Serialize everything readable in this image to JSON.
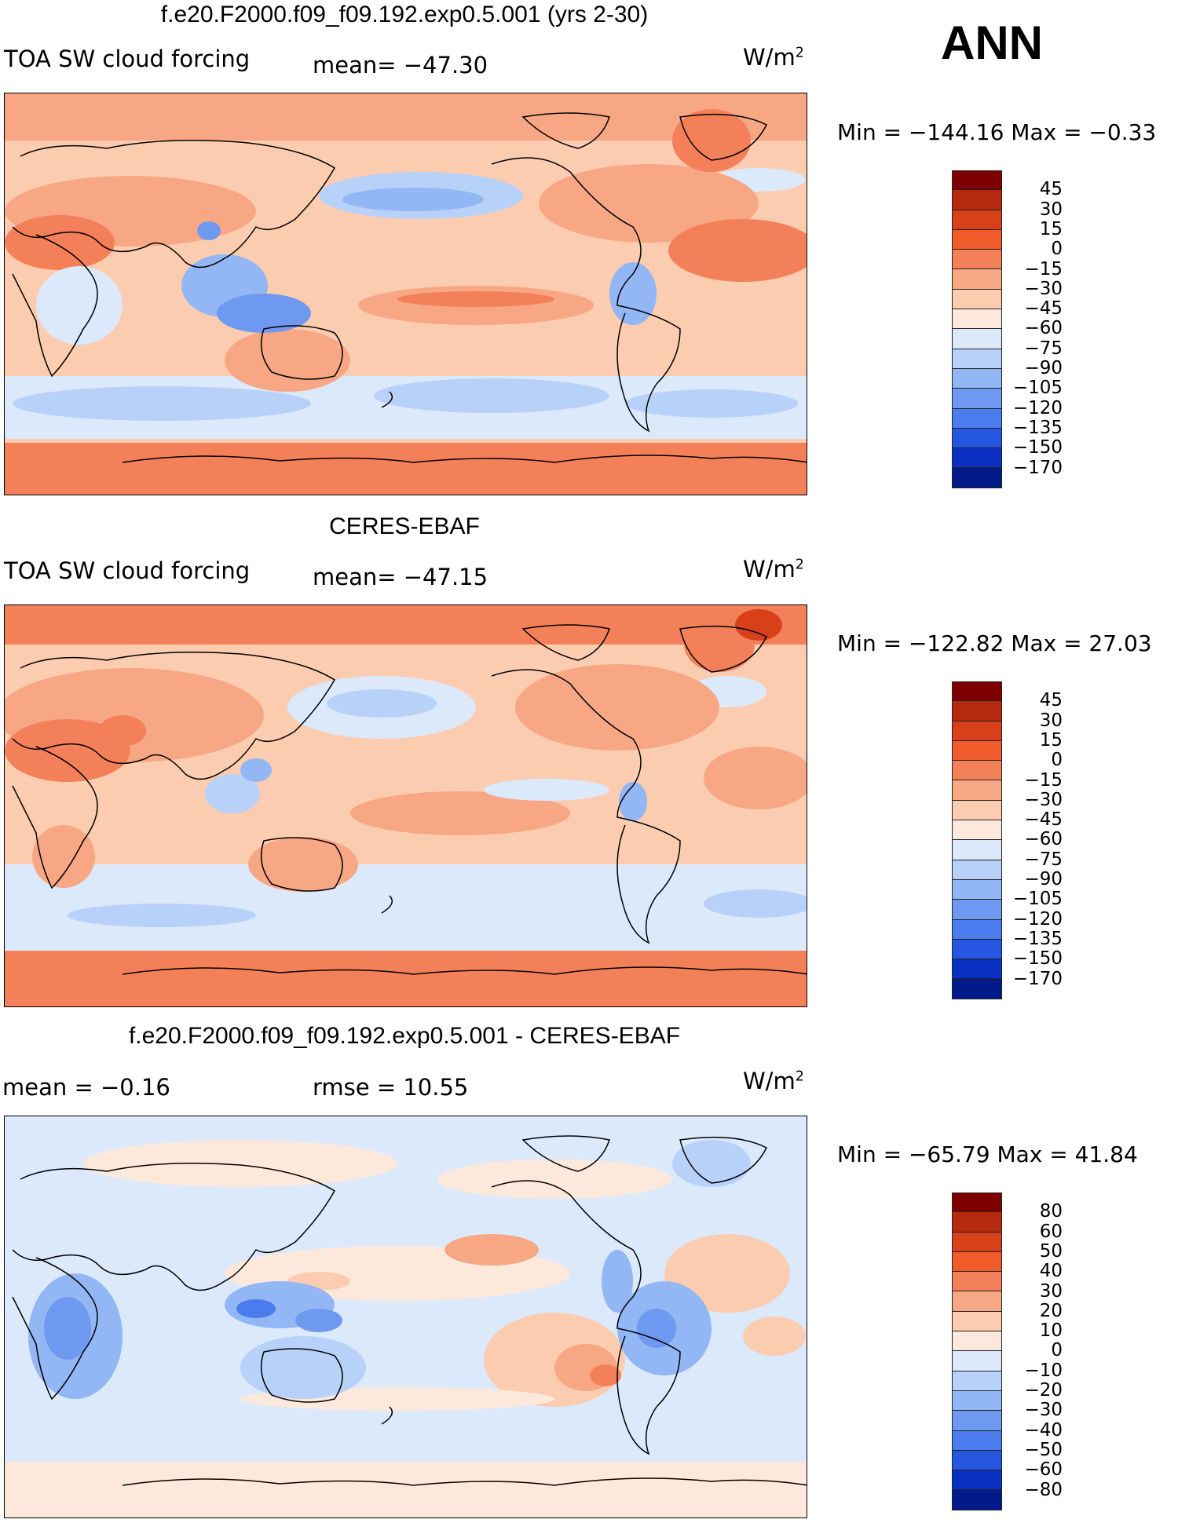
{
  "season": "ANN",
  "units": {
    "base": "W/m",
    "exp": "2"
  },
  "panels": [
    {
      "title": "f.e20.F2000.f09_f09.192.exp0.5.001 (yrs 2-30)",
      "variable": "TOA SW cloud forcing",
      "mean_text": "mean= −47.30",
      "minmax": "Min  =  −144.16  Max  =    −0.33",
      "levels": [
        "45",
        "30",
        "15",
        "0",
        "−15",
        "−30",
        "−45",
        "−60",
        "−75",
        "−90",
        "−105",
        "−120",
        "−135",
        "−150",
        "−170"
      ],
      "colors": [
        "#7f0000",
        "#b52a0e",
        "#d8401a",
        "#ef5b2b",
        "#f4805a",
        "#f8a784",
        "#fcccb0",
        "#fde9dc",
        "#dbe9fb",
        "#b8d1f8",
        "#93b6f4",
        "#6f99f1",
        "#4a7cee",
        "#2456e0",
        "#0a2fc3",
        "#001a8a"
      ]
    },
    {
      "title": "CERES-EBAF",
      "variable": "TOA SW cloud forcing",
      "mean_text": "mean= −47.15",
      "minmax": "Min  =  −122.82  Max  =    27.03",
      "levels": [
        "45",
        "30",
        "15",
        "0",
        "−15",
        "−30",
        "−45",
        "−60",
        "−75",
        "−90",
        "−105",
        "−120",
        "−135",
        "−150",
        "−170"
      ],
      "colors": [
        "#7f0000",
        "#b52a0e",
        "#d8401a",
        "#ef5b2b",
        "#f4805a",
        "#f8a784",
        "#fcccb0",
        "#fde9dc",
        "#dbe9fb",
        "#b8d1f8",
        "#93b6f4",
        "#6f99f1",
        "#4a7cee",
        "#2456e0",
        "#0a2fc3",
        "#001a8a"
      ]
    },
    {
      "title": "f.e20.F2000.f09_f09.192.exp0.5.001 - CERES-EBAF",
      "mean_text": "mean  =    −0.16",
      "rmse_text": "rmse  =    10.55",
      "minmax": "Min  =  −65.79  Max  =    41.84",
      "levels": [
        "80",
        "60",
        "50",
        "40",
        "30",
        "20",
        "10",
        "0",
        "−10",
        "−20",
        "−30",
        "−40",
        "−50",
        "−60",
        "−80"
      ],
      "colors": [
        "#7f0000",
        "#b52a0e",
        "#d8401a",
        "#ef5b2b",
        "#f4805a",
        "#f8a784",
        "#fcccb0",
        "#fde9dc",
        "#dbe9fb",
        "#b8d1f8",
        "#93b6f4",
        "#6f99f1",
        "#4a7cee",
        "#2456e0",
        "#0a2fc3",
        "#001a8a"
      ]
    }
  ]
}
